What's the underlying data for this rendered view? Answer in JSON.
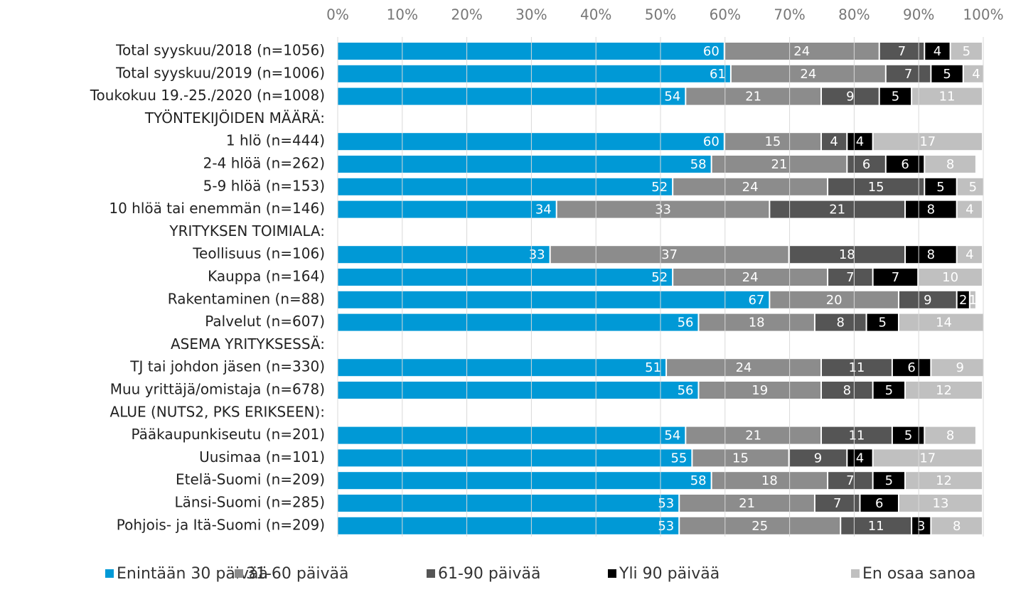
{
  "chart_data": {
    "type": "bar",
    "orientation": "horizontal",
    "stacked": true,
    "categories": [
      "Total syyskuu/2018 (n=1056)",
      "Total syyskuu/2019 (n=1006)",
      "Toukokuu 19.-25./2020 (n=1008)",
      "TYÖNTEKIJÖIDEN MÄÄRÄ:",
      "1 hlö (n=444)",
      "2-4 hlöä (n=262)",
      "5-9 hlöä (n=153)",
      "10 hlöä tai enemmän (n=146)",
      "YRITYKSEN TOIMIALA:",
      "Teollisuus (n=106)",
      "Kauppa (n=164)",
      "Rakentaminen (n=88)",
      "Palvelut (n=607)",
      "ASEMA YRITYKSESSÄ:",
      "TJ tai johdon jäsen (n=330)",
      "Muu yrittäjä/omistaja (n=678)",
      "ALUE (NUTS2, PKS ERIKSEEN):",
      "Pääkaupunkiseutu (n=201)",
      "Uusimaa (n=101)",
      "Etelä-Suomi (n=209)",
      "Länsi-Suomi (n=285)",
      "Pohjois- ja Itä-Suomi (n=209)"
    ],
    "series": [
      {
        "name": "Enintään 30 päivää",
        "color": "#0099d6",
        "values": [
          60,
          61,
          54,
          null,
          60,
          58,
          52,
          34,
          null,
          33,
          52,
          67,
          56,
          null,
          51,
          56,
          null,
          54,
          55,
          58,
          53,
          53
        ]
      },
      {
        "name": "31-60 päivää",
        "color": "#8c8c8c",
        "values": [
          24,
          24,
          21,
          null,
          15,
          21,
          24,
          33,
          null,
          37,
          24,
          20,
          18,
          null,
          24,
          19,
          null,
          21,
          15,
          18,
          21,
          25
        ]
      },
      {
        "name": "61-90 päivää",
        "color": "#555555",
        "values": [
          7,
          7,
          9,
          null,
          4,
          6,
          15,
          21,
          null,
          18,
          7,
          9,
          8,
          null,
          11,
          8,
          null,
          11,
          9,
          7,
          7,
          11
        ]
      },
      {
        "name": "Yli 90 päivää",
        "color": "#000000",
        "values": [
          4,
          5,
          5,
          null,
          4,
          6,
          5,
          8,
          null,
          8,
          7,
          2,
          5,
          null,
          6,
          5,
          null,
          5,
          4,
          5,
          6,
          3
        ]
      },
      {
        "name": "En osaa sanoa",
        "color": "#c0c0c0",
        "values": [
          5,
          4,
          11,
          null,
          17,
          8,
          5,
          4,
          null,
          4,
          10,
          1,
          14,
          null,
          9,
          12,
          null,
          8,
          17,
          12,
          13,
          8
        ]
      }
    ],
    "xlim": [
      0,
      100
    ],
    "xticks": [
      {
        "value": 0,
        "label": "0%"
      },
      {
        "value": 10,
        "label": "10%"
      },
      {
        "value": 20,
        "label": "20%"
      },
      {
        "value": 30,
        "label": "30%"
      },
      {
        "value": 40,
        "label": "40%"
      },
      {
        "value": 50,
        "label": "50%"
      },
      {
        "value": 60,
        "label": "60%"
      },
      {
        "value": 70,
        "label": "70%"
      },
      {
        "value": 80,
        "label": "80%"
      },
      {
        "value": 90,
        "label": "90%"
      },
      {
        "value": 100,
        "label": "100%"
      }
    ],
    "grid": true,
    "legend": "bottom"
  }
}
